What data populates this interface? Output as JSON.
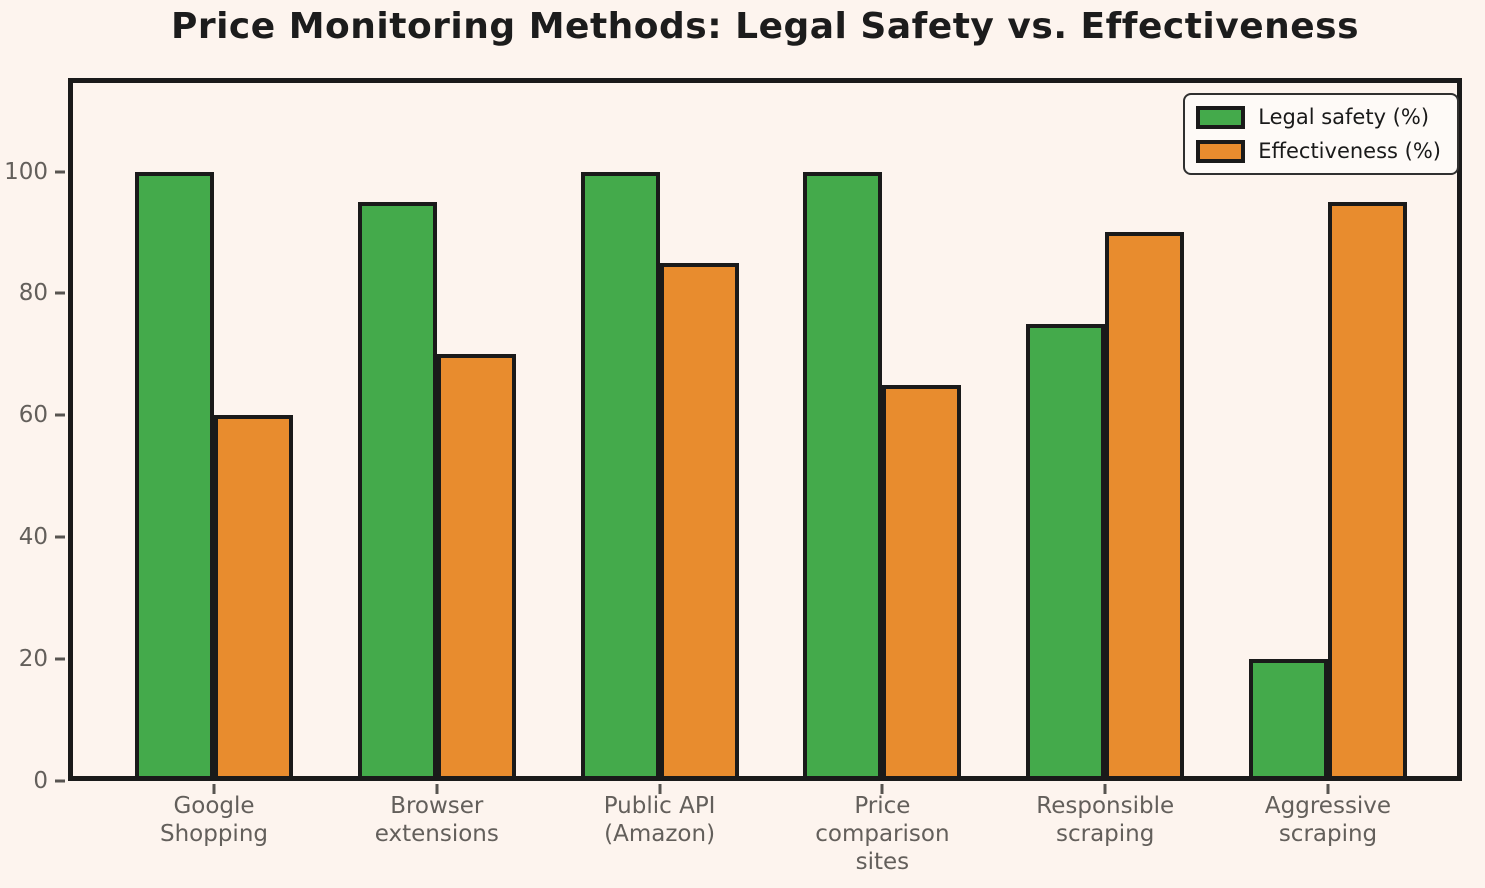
{
  "chart_data": {
    "type": "bar",
    "title": "Price Monitoring Methods: Legal Safety vs. Effectiveness",
    "categories": [
      "Google\nShopping",
      "Browser\nextensions",
      "Public API\n(Amazon)",
      "Price\ncomparison\nsites",
      "Responsible\nscraping",
      "Aggressive\nscraping"
    ],
    "series": [
      {
        "name": "Legal safety (%)",
        "color": "#44AA4B",
        "values": [
          100,
          95,
          100,
          100,
          75,
          20
        ]
      },
      {
        "name": "Effectiveness (%)",
        "color": "#E88C2E",
        "values": [
          60,
          70,
          85,
          65,
          90,
          95
        ]
      }
    ],
    "xlabel": "",
    "ylabel": "",
    "ylim": [
      0,
      115
    ],
    "yticks": [
      0,
      20,
      40,
      60,
      80,
      100
    ],
    "grid": false,
    "legend_position": "upper right"
  },
  "colors": {
    "background": "#FDF4EE",
    "bar_edge": "#1a1a1a",
    "axis_spine": "#1a1a1a",
    "tick_label": "#635f5b",
    "title_text": "#1c1c1c"
  }
}
